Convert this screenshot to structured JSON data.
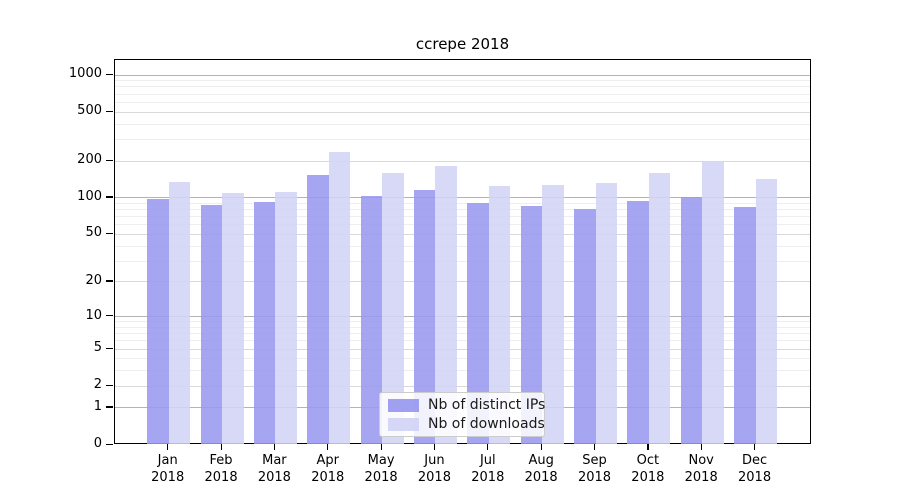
{
  "chart_data": {
    "type": "bar",
    "title": "ccrepe 2018",
    "x_tick_labels": [
      [
        "Jan",
        "2018"
      ],
      [
        "Feb",
        "2018"
      ],
      [
        "Mar",
        "2018"
      ],
      [
        "Apr",
        "2018"
      ],
      [
        "May",
        "2018"
      ],
      [
        "Jun",
        "2018"
      ],
      [
        "Jul",
        "2018"
      ],
      [
        "Aug",
        "2018"
      ],
      [
        "Sep",
        "2018"
      ],
      [
        "Oct",
        "2018"
      ],
      [
        "Nov",
        "2018"
      ],
      [
        "Dec",
        "2018"
      ]
    ],
    "y_tick_labels": [
      0,
      1,
      2,
      5,
      10,
      20,
      50,
      100,
      200,
      500,
      1000
    ],
    "y_minor_gridlines": [
      3,
      4,
      6,
      7,
      8,
      9,
      30,
      40,
      60,
      70,
      80,
      90,
      300,
      400,
      600,
      700,
      800,
      900
    ],
    "y_scale": "log10(value+1)",
    "ylim": [
      0,
      1300
    ],
    "grid": "on",
    "legend_position": "lower center",
    "series": [
      {
        "name": "Nb of distinct IPs",
        "color": "#a2a2ef",
        "values": [
          97,
          88,
          93,
          153,
          104,
          115,
          90,
          86,
          81,
          95,
          101,
          84
        ]
      },
      {
        "name": "Nb of downloads",
        "color": "#d8d8f7",
        "values": [
          134,
          110,
          112,
          235,
          160,
          182,
          126,
          128,
          132,
          161,
          197,
          143
        ]
      }
    ]
  }
}
